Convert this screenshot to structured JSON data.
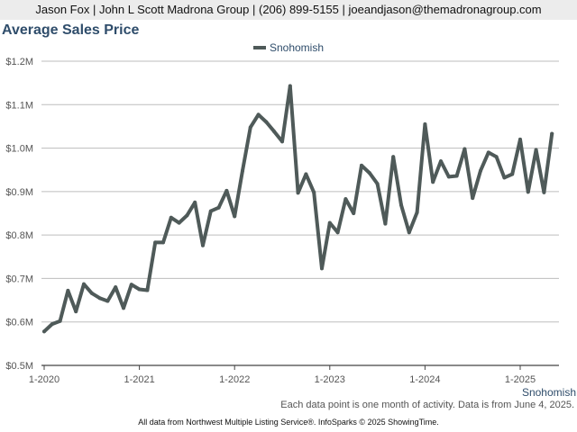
{
  "header": {
    "text": "Jason Fox | John L Scott Madrona Group | (206) 899-5155 | joeandjason@themadronagroup.com"
  },
  "chart_data": {
    "type": "line",
    "title": "Average Sales Price",
    "xlabel": "Snohomish",
    "ylabel": "",
    "legend": "top-center",
    "grid": true,
    "ylim": [
      500000,
      1200000
    ],
    "yticks": [
      {
        "value": 500000,
        "label": "$0.5M"
      },
      {
        "value": 600000,
        "label": "$0.6M"
      },
      {
        "value": 700000,
        "label": "$0.7M"
      },
      {
        "value": 800000,
        "label": "$0.8M"
      },
      {
        "value": 900000,
        "label": "$0.9M"
      },
      {
        "value": 1000000,
        "label": "$1.0M"
      },
      {
        "value": 1100000,
        "label": "$1.1M"
      },
      {
        "value": 1200000,
        "label": "$1.2M"
      }
    ],
    "xticks": [
      "1-2020",
      "1-2021",
      "1-2022",
      "1-2023",
      "1-2024",
      "1-2025"
    ],
    "x_start": "1-2020",
    "x_end": "5-2025",
    "series": [
      {
        "name": "Snohomish",
        "color": "#4f5a59",
        "x": [
          "1-2020",
          "2-2020",
          "3-2020",
          "4-2020",
          "5-2020",
          "6-2020",
          "7-2020",
          "8-2020",
          "9-2020",
          "10-2020",
          "11-2020",
          "12-2020",
          "1-2021",
          "2-2021",
          "3-2021",
          "4-2021",
          "5-2021",
          "6-2021",
          "7-2021",
          "8-2021",
          "9-2021",
          "10-2021",
          "11-2021",
          "12-2021",
          "1-2022",
          "2-2022",
          "3-2022",
          "4-2022",
          "5-2022",
          "6-2022",
          "7-2022",
          "8-2022",
          "9-2022",
          "10-2022",
          "11-2022",
          "12-2022",
          "1-2023",
          "2-2023",
          "3-2023",
          "4-2023",
          "5-2023",
          "6-2023",
          "7-2023",
          "8-2023",
          "9-2023",
          "10-2023",
          "11-2023",
          "12-2023",
          "1-2024",
          "2-2024",
          "3-2024",
          "4-2024",
          "5-2024",
          "6-2024",
          "7-2024",
          "8-2024",
          "9-2024",
          "10-2024",
          "11-2024",
          "12-2024",
          "1-2025",
          "2-2025",
          "3-2025",
          "4-2025",
          "5-2025"
        ],
        "values": [
          578000,
          595000,
          602000,
          672000,
          624000,
          687000,
          666000,
          655000,
          648000,
          680000,
          632000,
          686000,
          675000,
          673000,
          783000,
          783000,
          840000,
          828000,
          845000,
          875000,
          776000,
          855000,
          863000,
          902000,
          843000,
          948000,
          1048000,
          1077000,
          1060000,
          1038000,
          1015000,
          1143000,
          897000,
          940000,
          898000,
          723000,
          828000,
          806000,
          883000,
          850000,
          960000,
          943000,
          918000,
          826000,
          980000,
          869000,
          806000,
          852000,
          1055000,
          922000,
          970000,
          934000,
          936000,
          998000,
          885000,
          948000,
          990000,
          980000,
          932000,
          940000,
          1020000,
          899000,
          996000,
          898000,
          1033000
        ]
      }
    ]
  },
  "notes": {
    "data_note": "Each data point is one month of activity. Data is from June 4, 2025.",
    "source": "All data from Northwest Multiple Listing Service®. InfoSparks © 2025 ShowingTime."
  }
}
